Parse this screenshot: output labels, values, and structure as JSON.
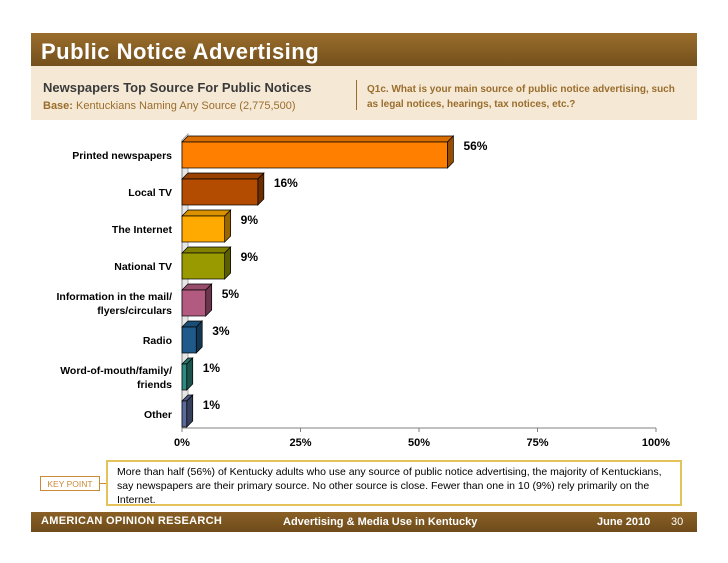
{
  "header": {
    "title": "Public Notice Advertising",
    "subtitle": "Newspapers Top Source For Public Notices",
    "base_label": "Base:",
    "base_text": "Kentuckians Naming Any Source (2,775,500)",
    "question": "Q1c. What is your main source of public notice advertising, such as legal notices, hearings, tax notices, etc.?"
  },
  "chart_data": {
    "type": "bar",
    "orientation": "horizontal",
    "categories": [
      [
        "Printed newspapers"
      ],
      [
        "Local TV"
      ],
      [
        "The Internet"
      ],
      [
        "National TV"
      ],
      [
        "Information in the mail/",
        "flyers/circulars"
      ],
      [
        "Radio"
      ],
      [
        "Word-of-mouth/family/",
        "friends"
      ],
      [
        "Other"
      ]
    ],
    "values": [
      56,
      16,
      9,
      9,
      5,
      3,
      1,
      1
    ],
    "value_labels": [
      "56%",
      "16%",
      "9%",
      "9%",
      "5%",
      "3%",
      "1%",
      "1%"
    ],
    "colors": [
      "#ff8000",
      "#b34c00",
      "#ffaa00",
      "#999900",
      "#b35a80",
      "#1f5a8a",
      "#2e8a80",
      "#5a6a9a"
    ],
    "xlim": [
      0,
      100
    ],
    "x_ticks": [
      "0%",
      "25%",
      "50%",
      "75%",
      "100%"
    ],
    "grid": false
  },
  "key_point": {
    "label": "KEY POINT",
    "text": "More than half (56%) of Kentucky adults who use any source of public notice advertising, the majority of Kentuckians, say newspapers are their primary source. No other source is close. Fewer than one in 10 (9%) rely primarily on the Internet."
  },
  "footer": {
    "brand": "AMERICAN OPINION RESEARCH",
    "center": "Advertising & Media Use in Kentucky",
    "date": "June 2010",
    "page": "30"
  }
}
